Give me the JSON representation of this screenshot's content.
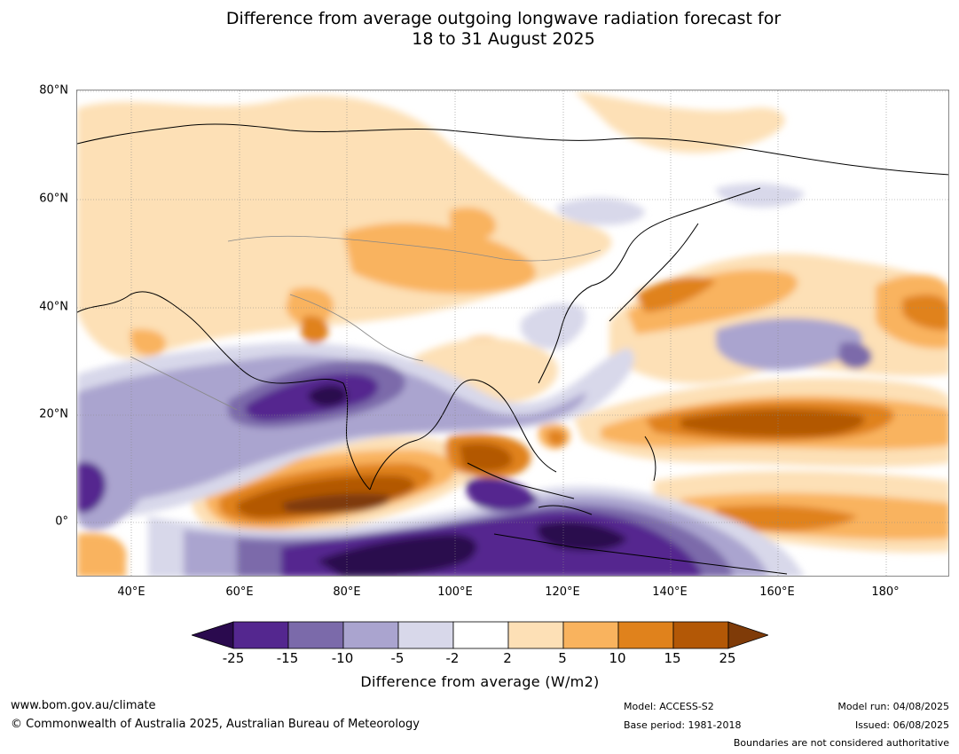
{
  "title": {
    "line1": "Difference from average outgoing longwave radiation forecast for",
    "line2": "18 to 31 August 2025"
  },
  "map": {
    "lat_labels": [
      "80°N",
      "60°N",
      "40°N",
      "20°N",
      "0°"
    ],
    "lon_labels": [
      "40°E",
      "60°E",
      "80°E",
      "100°E",
      "120°E",
      "140°E",
      "160°E",
      "180°"
    ]
  },
  "colorbar": {
    "ticks": [
      "-25",
      "-15",
      "-10",
      "-5",
      "-2",
      "2",
      "5",
      "10",
      "15",
      "25"
    ],
    "label": "Difference from average (W/m2)",
    "colors": [
      "#2a0a4e",
      "#54278f",
      "#7b6aaa",
      "#aaa4cf",
      "#d8d8ea",
      "#ffffff",
      "#fde0b6",
      "#f9b35e",
      "#e0821c",
      "#b35806",
      "#7f3b08"
    ]
  },
  "footer": {
    "website": "www.bom.gov.au/climate",
    "copyright": "© Commonwealth of Australia 2025, Australian Bureau of Meteorology",
    "model": "Model: ACCESS-S2",
    "base_period": "Base period: 1981-2018",
    "model_run": "Model run: 04/08/2025",
    "issued": "Issued: 06/08/2025",
    "disclaimer": "Boundaries are not considered authoritative"
  }
}
